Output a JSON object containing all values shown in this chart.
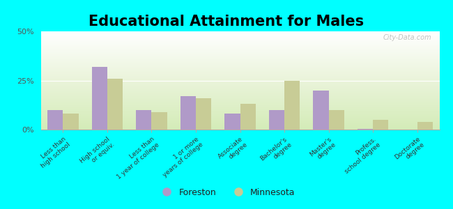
{
  "title": "Educational Attainment for Males",
  "categories": [
    "Less than\nhigh school",
    "High school\nor equiv.",
    "Less than\n1 year of college",
    "1 or more\nyears of college",
    "Associate\ndegree",
    "Bachelor's\ndegree",
    "Master's\ndegree",
    "Profess.\nschool degree",
    "Doctorate\ndegree"
  ],
  "foreston_values": [
    10,
    32,
    10,
    17,
    8,
    10,
    20,
    0.5,
    0
  ],
  "minnesota_values": [
    8,
    26,
    9,
    16,
    13,
    25,
    10,
    5,
    4
  ],
  "foreston_color": "#b09ac8",
  "minnesota_color": "#c8cc96",
  "outer_background": "#00ffff",
  "ylim": [
    0,
    50
  ],
  "yticks": [
    0,
    25,
    50
  ],
  "ytick_labels": [
    "0%",
    "25%",
    "50%"
  ],
  "bar_width": 0.35,
  "title_fontsize": 15,
  "legend_labels": [
    "Foreston",
    "Minnesota"
  ],
  "watermark": "City-Data.com"
}
